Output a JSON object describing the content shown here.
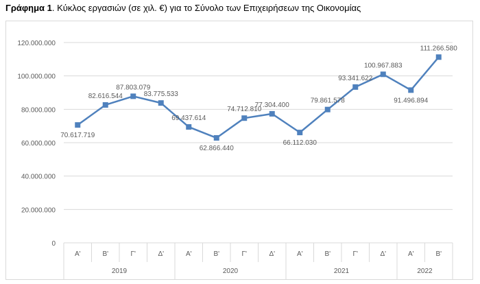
{
  "caption": {
    "label": "Γράφημα 1",
    "text": ". Κύκλος εργασιών (σε χιλ. €) για το Σύνολο των Επιχειρήσεων της Οικονομίας"
  },
  "colors": {
    "series": "#4F81BD",
    "grid": "#d9d9d9",
    "axis_text": "#595959"
  },
  "chart_data": {
    "type": "line",
    "title": "",
    "xlabel": "",
    "ylabel": "",
    "ylim": [
      0,
      120000000
    ],
    "ytick_step": 20000000,
    "ytick_labels": [
      "0",
      "20.000.000",
      "40.000.000",
      "60.000.000",
      "80.000.000",
      "100.000.000",
      "120.000.000"
    ],
    "grid": true,
    "legend": "none",
    "marker": "square",
    "categories": [
      "Α'",
      "Β'",
      "Γ'",
      "Δ'",
      "Α'",
      "Β'",
      "Γ'",
      "Δ'",
      "Α'",
      "Β'",
      "Γ'",
      "Δ'",
      "Α'",
      "Β'"
    ],
    "groups": [
      {
        "label": "2019",
        "count": 4
      },
      {
        "label": "2020",
        "count": 4
      },
      {
        "label": "2021",
        "count": 4
      },
      {
        "label": "2022",
        "count": 2
      }
    ],
    "series": [
      {
        "values": [
          70617719,
          82616544,
          87803079,
          83775533,
          69437614,
          62866440,
          74712810,
          77304400,
          66112030,
          79861578,
          93341622,
          100967883,
          91496894,
          111266580
        ],
        "labels": [
          "70.617.719",
          "82.616.544",
          "87.803.079",
          "83.775.533",
          "69.437.614",
          "62.866.440",
          "74.712.810",
          "77.304.400",
          "66.112.030",
          "79.861.578",
          "93.341.622",
          "100.967.883",
          "91.496.894",
          "111.266.580"
        ]
      }
    ]
  }
}
